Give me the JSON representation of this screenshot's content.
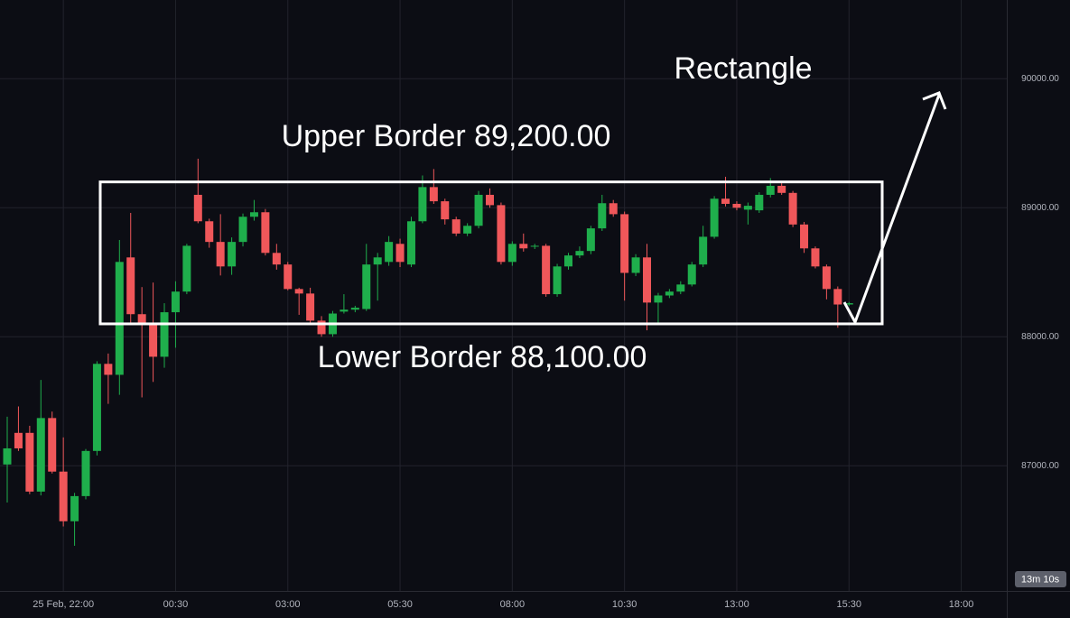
{
  "chart_data": {
    "type": "candlestick",
    "categories": [
      null,
      null,
      null,
      null,
      null,
      "25 Feb, 22:00",
      null,
      null,
      null,
      null,
      null,
      null,
      null,
      null,
      null,
      "00:30",
      null,
      null,
      null,
      null,
      null,
      null,
      null,
      null,
      null,
      "03:00",
      null,
      null,
      null,
      null,
      null,
      null,
      null,
      null,
      null,
      "05:30",
      null,
      null,
      null,
      null,
      null,
      null,
      null,
      null,
      null,
      "08:00",
      null,
      null,
      null,
      null,
      null,
      null,
      null,
      null,
      null,
      "10:30",
      null,
      null,
      null,
      null,
      null,
      null,
      null,
      null,
      null,
      "13:00",
      null,
      null,
      null,
      null,
      null,
      null,
      null,
      null,
      null,
      "15:30",
      null,
      null,
      null,
      null,
      null,
      null,
      null,
      null,
      null,
      "18:00"
    ],
    "open": [
      87010,
      87255,
      87255,
      86800,
      87370,
      86955,
      86570,
      86765,
      87115,
      87790,
      87705,
      88615,
      88175,
      88105,
      87845,
      88190,
      88350,
      89100,
      88895,
      88735,
      88545,
      88735,
      88930,
      88965,
      88650,
      88560,
      88370,
      88335,
      88125,
      88020,
      88195,
      88210,
      88215,
      88560,
      88580,
      88720,
      88560,
      88895,
      89160,
      89050,
      88910,
      88800,
      88860,
      89100,
      89020,
      88580,
      88720,
      88700,
      88705,
      88330,
      88545,
      88630,
      88665,
      88840,
      89035,
      88950,
      88495,
      88615,
      88265,
      88320,
      88350,
      88405,
      88560,
      88775,
      89070,
      89030,
      88985,
      88980,
      89100,
      89170,
      89115,
      88870,
      88685,
      88545,
      88370,
      88250,
      null,
      null,
      null,
      null,
      null,
      null,
      null,
      null,
      null,
      null
    ],
    "high": [
      87380,
      87460,
      87310,
      87665,
      87420,
      87220,
      86790,
      87130,
      87810,
      87870,
      88750,
      88960,
      88385,
      88420,
      88260,
      88430,
      88720,
      89380,
      88915,
      88950,
      88770,
      88955,
      89060,
      88990,
      88720,
      88580,
      88380,
      88380,
      88160,
      88200,
      88330,
      88240,
      88720,
      88650,
      88780,
      88760,
      88930,
      89250,
      89300,
      89070,
      88930,
      88880,
      89130,
      89150,
      89040,
      88740,
      88800,
      88720,
      88720,
      88565,
      88650,
      88700,
      88860,
      89100,
      89060,
      88970,
      88640,
      88720,
      88340,
      88370,
      88430,
      88580,
      88860,
      89090,
      89240,
      89050,
      89040,
      89120,
      89230,
      89190,
      89130,
      88890,
      88700,
      88560,
      88390,
      88270,
      null,
      null,
      null,
      null,
      null,
      null,
      null,
      null,
      null,
      null
    ],
    "low": [
      86715,
      87115,
      86780,
      86770,
      86940,
      86530,
      86380,
      86740,
      87080,
      87480,
      87550,
      88110,
      87530,
      87650,
      87760,
      87915,
      88330,
      88880,
      88690,
      88475,
      88480,
      88700,
      88900,
      88630,
      88520,
      88360,
      88170,
      88100,
      88000,
      88000,
      88180,
      88190,
      88200,
      88280,
      88550,
      88540,
      88540,
      88880,
      89030,
      88870,
      88780,
      88780,
      88840,
      89000,
      88560,
      88550,
      88660,
      88680,
      88310,
      88310,
      88520,
      88610,
      88640,
      88820,
      88930,
      88280,
      88470,
      88050,
      88110,
      88300,
      88330,
      88390,
      88540,
      88760,
      89010,
      88980,
      88870,
      88960,
      89080,
      89100,
      88850,
      88650,
      88530,
      88290,
      88070,
      88240,
      null,
      null,
      null,
      null,
      null,
      null,
      null,
      null,
      null,
      null
    ],
    "close": [
      87135,
      87135,
      86800,
      87370,
      86955,
      86570,
      86765,
      87115,
      87790,
      87705,
      88580,
      88175,
      88105,
      87845,
      88190,
      88350,
      88705,
      88895,
      88735,
      88545,
      88735,
      88930,
      88965,
      88650,
      88560,
      88370,
      88335,
      88125,
      88020,
      88180,
      88210,
      88225,
      88560,
      88615,
      88735,
      88580,
      88895,
      89160,
      89050,
      88910,
      88800,
      88860,
      89100,
      89020,
      88580,
      88720,
      88685,
      88705,
      88330,
      88545,
      88630,
      88665,
      88840,
      89035,
      88950,
      88495,
      88615,
      88265,
      88320,
      88350,
      88405,
      88560,
      88775,
      89070,
      89030,
      89000,
      89015,
      89100,
      89170,
      89115,
      88870,
      88685,
      88545,
      88370,
      88250,
      88260,
      null,
      null,
      null,
      null,
      null,
      null,
      null,
      null,
      null,
      null
    ],
    "up_color": "#1fae4c",
    "down_color": "#f0575a",
    "ylim": [
      86030,
      90610
    ],
    "yticks": [
      {
        "value": 87000,
        "label": "87000.00"
      },
      {
        "value": 88000,
        "label": "88000.00"
      },
      {
        "value": 89000,
        "label": "89000.00"
      },
      {
        "value": 90000,
        "label": "90000.00"
      }
    ],
    "grid": true,
    "annotations": {
      "pattern": "Rectangle",
      "upper": {
        "value": 89200,
        "label": "Upper Border 89,200.00"
      },
      "lower": {
        "value": 88100,
        "label": "Lower Border 88,100.00"
      }
    },
    "countdown": "13m 10s"
  }
}
